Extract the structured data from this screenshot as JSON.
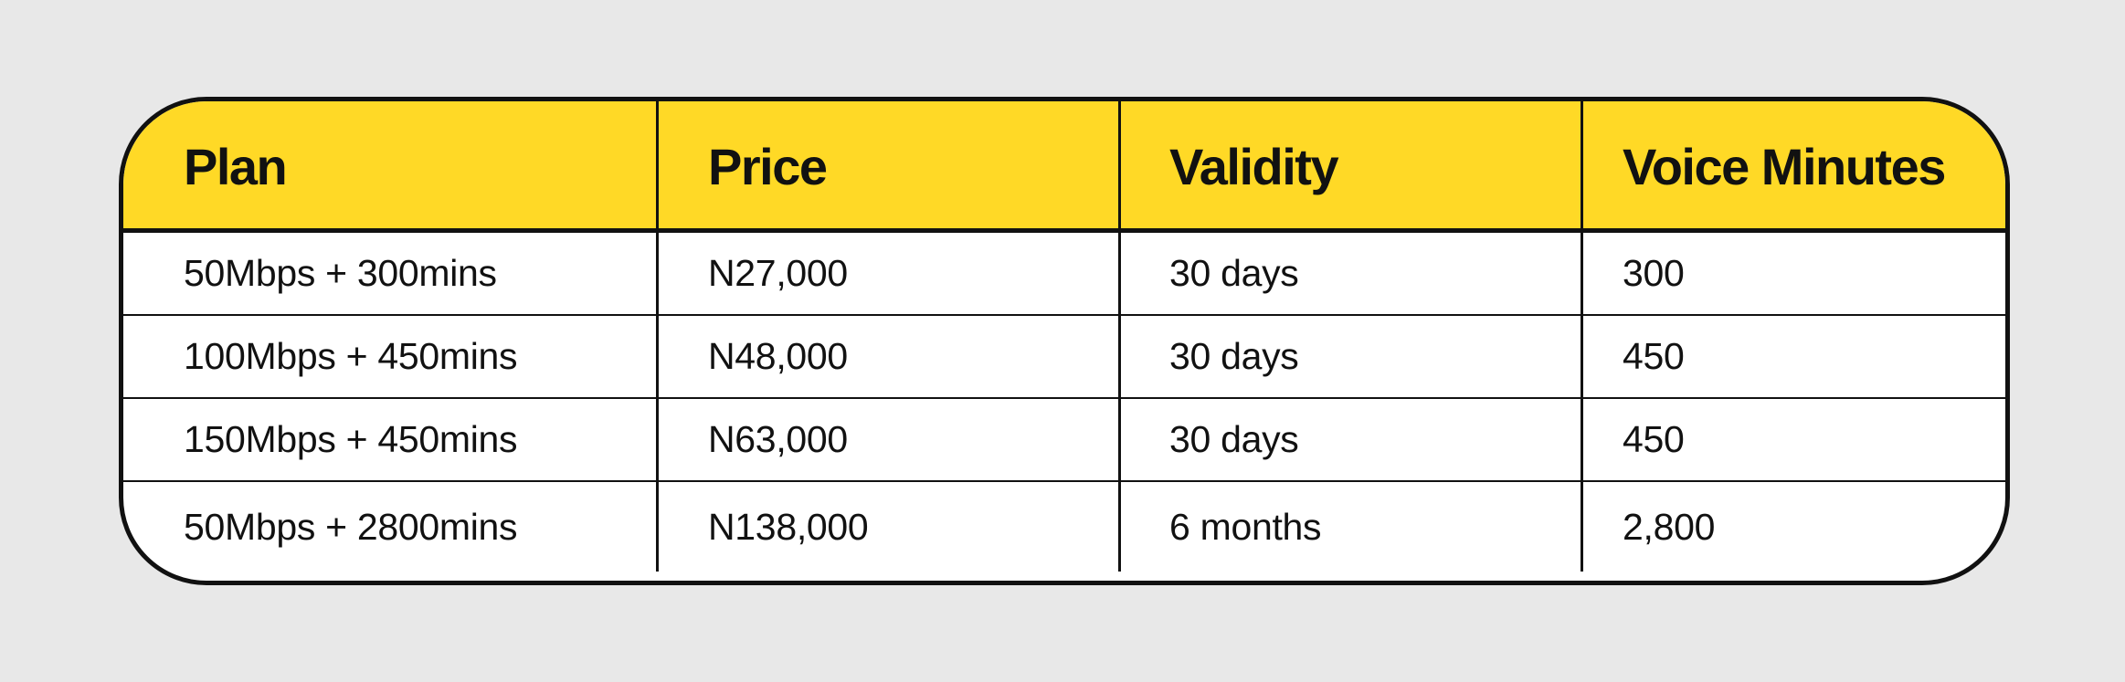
{
  "table": {
    "headers": [
      "Plan",
      "Price",
      "Validity",
      "Voice Minutes"
    ],
    "rows": [
      [
        "50Mbps + 300mins",
        "N27,000",
        "30 days",
        "300"
      ],
      [
        "100Mbps + 450mins",
        "N48,000",
        "30 days",
        "450"
      ],
      [
        "150Mbps + 450mins",
        "N63,000",
        "30 days",
        "450"
      ],
      [
        "50Mbps + 2800mins",
        "N138,000",
        "6 months",
        "2,800"
      ]
    ]
  },
  "colors": {
    "page_background": "#e8e8e8",
    "header_background": "#ffd926",
    "border": "#111111",
    "body_background": "#ffffff",
    "text": "#111111"
  }
}
